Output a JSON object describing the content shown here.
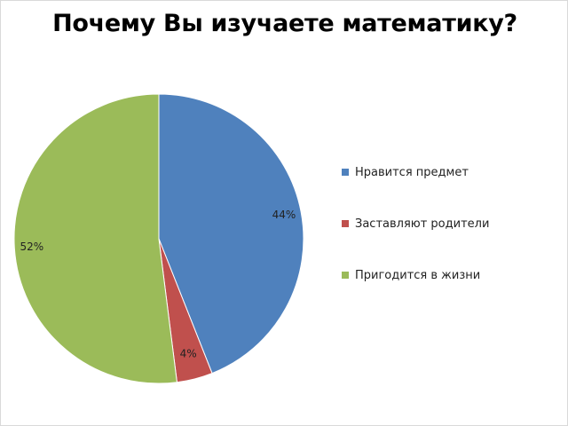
{
  "chart_data": {
    "type": "pie",
    "title": "Почему Вы изучаете математику?",
    "start_angle_deg": 0,
    "direction": "clockwise",
    "legend_position": "right",
    "slices": [
      {
        "label": "Нравится предмет",
        "value": 44,
        "value_label": "44%",
        "color": "#4F81BD"
      },
      {
        "label": "Заставляют родители",
        "value": 4,
        "value_label": "4%",
        "color": "#C0504D"
      },
      {
        "label": "Пригодится в жизни",
        "value": 52,
        "value_label": "52%",
        "color": "#9BBB59"
      }
    ]
  }
}
